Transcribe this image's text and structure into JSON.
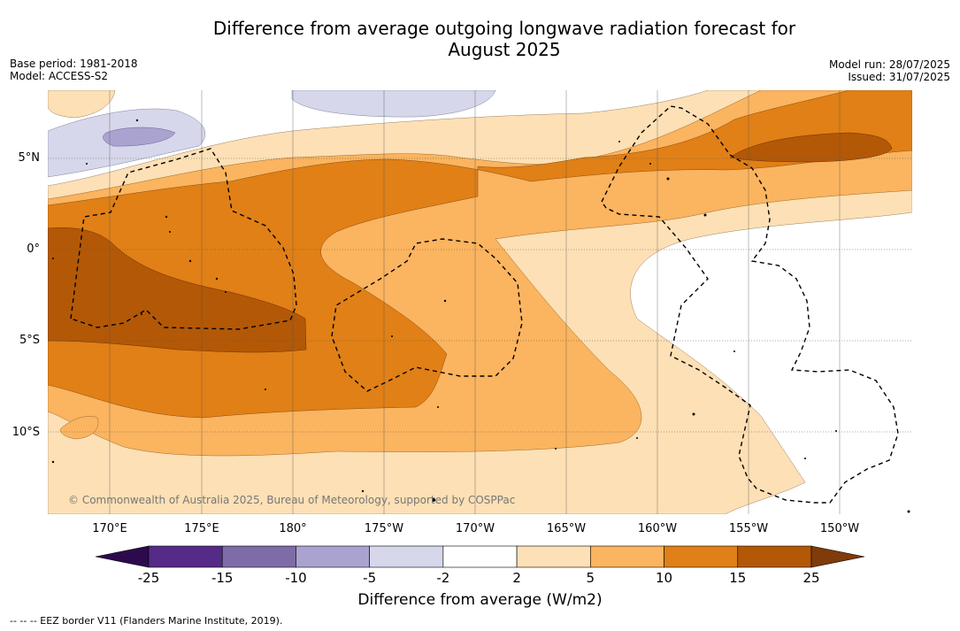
{
  "title_line1": "Difference from average outgoing longwave radiation forecast for",
  "title_line2": "August 2025",
  "meta_left": {
    "base_period": "Base period: 1981-2018",
    "model": "Model: ACCESS-S2"
  },
  "meta_right": {
    "model_run": "Model run: 28/07/2025",
    "issued": "Issued: 31/07/2025"
  },
  "lat_labels": [
    "5°N",
    "0°",
    "5°S",
    "10°S"
  ],
  "lon_labels": [
    "170°E",
    "175°E",
    "180°",
    "175°W",
    "170°W",
    "165°W",
    "160°W",
    "155°W",
    "150°W"
  ],
  "copyright": "© Commonwealth of Australia 2025, Bureau of Meteorology, supported by COSPPac",
  "colorbar": {
    "ticks": [
      "-25",
      "-15",
      "-10",
      "-5",
      "-2",
      "2",
      "5",
      "10",
      "15",
      "25"
    ],
    "colors": [
      "#562a87",
      "#7e6ca8",
      "#aba3cf",
      "#d6d7ea",
      "#ffffff",
      "#fde0b5",
      "#fbb45f",
      "#e08016",
      "#b35806"
    ],
    "extend_low_color": "#2d0a4e",
    "extend_high_color": "#7f3b08",
    "label": "Difference from average (W/m2)"
  },
  "footer": "-- -- -- EEZ border V11 (Flanders Marine Institute, 2019)."
}
